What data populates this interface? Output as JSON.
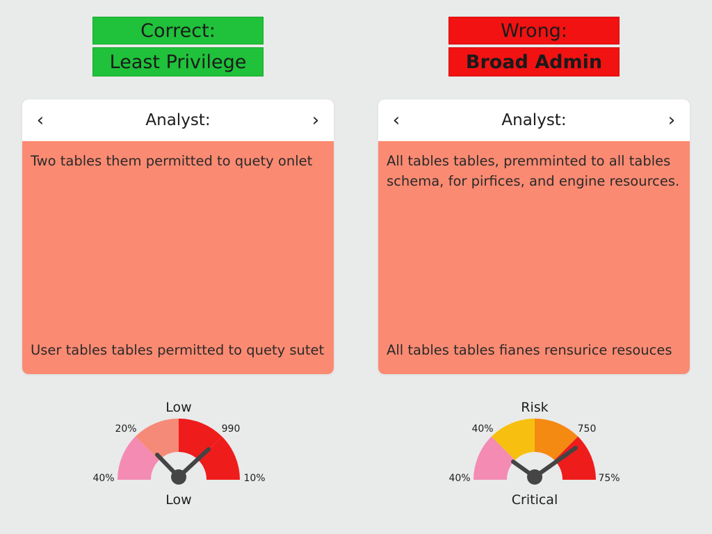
{
  "left": {
    "header_top": "Correct:",
    "header_bottom": "Least Privilege",
    "card": {
      "title": "Analyst:",
      "prev_icon": "chevron-left-icon",
      "next_icon": "chevron-right-icon",
      "top_text": "Two tables them permitted to quety onlet",
      "bottom_text": "User tables tables permitted to quety sutet"
    },
    "gauge": {
      "top_label": "Low",
      "bottom_label": "Low",
      "label_20": "20%",
      "label_990": "990",
      "label_40": "40%",
      "label_10": "10%",
      "colors": [
        "#f38bb3",
        "#f68a78",
        "#ef1c1c",
        "#ef1c1c"
      ]
    }
  },
  "right": {
    "header_top": "Wrong:",
    "header_bottom": "Broad Admin",
    "card": {
      "title": "Analyst:",
      "prev_icon": "chevron-left-icon",
      "next_icon": "chevron-right-icon",
      "top_text": "All tables tables, premminted to all tables schema, for pirfices, and engine resources.",
      "bottom_text": "All tables tables fianes rensurice resouces"
    },
    "gauge": {
      "top_label": "Risk",
      "bottom_label": "Critical",
      "label_40_top": "40%",
      "label_750": "750",
      "label_40": "40%",
      "label_75": "75%",
      "colors": [
        "#f38bb3",
        "#f7c010",
        "#f58a12",
        "#ef1c1c"
      ]
    }
  }
}
